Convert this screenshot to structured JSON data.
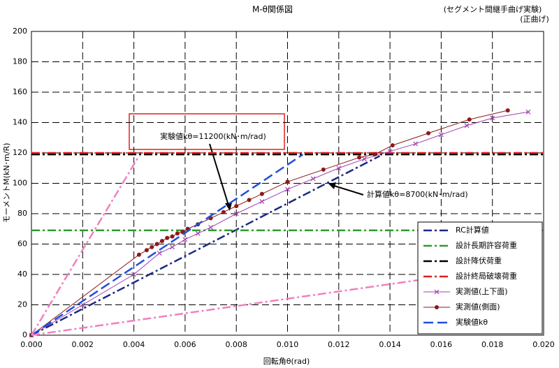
{
  "chart_data": {
    "type": "line",
    "title": "M-θ関係図",
    "subtitle": [
      "(セグメント間継手曲げ実験)",
      "(正曲げ)"
    ],
    "x_label": "回転角θ(rad)",
    "y_label": "モーメントM(kN･m/R)",
    "xlim": [
      0,
      0.02
    ],
    "ylim": [
      0,
      200
    ],
    "xticks": [
      {
        "value": 0,
        "label": "0.000"
      },
      {
        "value": 0.002,
        "label": "0.002"
      },
      {
        "value": 0.004,
        "label": "0.004"
      },
      {
        "value": 0.006,
        "label": "0.006"
      },
      {
        "value": 0.008,
        "label": "0.008"
      },
      {
        "value": 0.01,
        "label": "0.010"
      },
      {
        "value": 0.012,
        "label": "0.012"
      },
      {
        "value": 0.014,
        "label": "0.014"
      },
      {
        "value": 0.016,
        "label": "0.016"
      },
      {
        "value": 0.018,
        "label": "0.018"
      },
      {
        "value": 0.02,
        "label": "0.020"
      }
    ],
    "yticks": [
      0,
      20,
      40,
      60,
      80,
      100,
      120,
      140,
      160,
      180,
      200
    ],
    "grid": true,
    "legend": "lower right",
    "annotations": [
      {
        "text": "実験値kθ=11200(kN･m/rad)"
      },
      {
        "text": "計算値kθ=8700(kN･m/rad)"
      }
    ],
    "series": [
      {
        "name": "RC計算値",
        "color": "#1a2a80",
        "dash": "dashdot",
        "x": [
          0,
          0.0136
        ],
        "values": [
          0,
          118
        ]
      },
      {
        "name": "設計長期許容荷重",
        "color": "#2e9a2e",
        "dash": "dashdot",
        "x": [
          0,
          0.02
        ],
        "values": [
          69,
          69
        ]
      },
      {
        "name": "設計降伏荷重",
        "color": "#000000",
        "dash": "dashdot",
        "x": [
          0,
          0.02
        ],
        "values": [
          119,
          119
        ]
      },
      {
        "name": "設計終局破壊荷重",
        "color": "#e02020",
        "dash": "dashdot",
        "x": [
          0,
          0.02
        ],
        "values": [
          120,
          120
        ]
      },
      {
        "name": "実測値(上下面)",
        "color": "#a040b0",
        "dash": "solid",
        "marker": "x",
        "x": [
          0,
          0.002,
          0.004,
          0.005,
          0.0055,
          0.006,
          0.0065,
          0.007,
          0.008,
          0.009,
          0.01,
          0.011,
          0.012,
          0.013,
          0.014,
          0.015,
          0.016,
          0.017,
          0.018,
          0.0194
        ],
        "values": [
          0,
          20,
          40,
          54,
          58,
          63,
          67,
          71,
          80,
          88,
          96,
          103,
          110,
          116,
          121,
          126,
          132,
          138,
          143,
          147
        ]
      },
      {
        "name": "実測値(側面)",
        "color": "#8b1a1a",
        "dash": "solid",
        "marker": "circle",
        "x": [
          0,
          0.0042,
          0.0045,
          0.0047,
          0.0049,
          0.0051,
          0.0053,
          0.0055,
          0.0057,
          0.0059,
          0.0061,
          0.0065,
          0.007,
          0.0075,
          0.008,
          0.0085,
          0.009,
          0.01,
          0.0114,
          0.0128,
          0.0134,
          0.0141,
          0.0155,
          0.0171,
          0.0186
        ],
        "values": [
          0,
          53,
          56,
          58,
          60,
          62,
          64,
          65,
          67,
          68,
          70,
          73,
          77,
          81,
          85,
          89,
          93,
          101,
          109,
          117,
          119,
          125,
          133,
          142,
          148
        ]
      },
      {
        "name": "実験値kθ",
        "color": "#1f4fe0",
        "dash": "longdash",
        "x": [
          0,
          0.0106
        ],
        "values": [
          0,
          119
        ]
      },
      {
        "color": "#f080c0",
        "dash": "dashdot",
        "x": [
          0,
          0.0042
        ],
        "values": [
          0,
          118
        ]
      },
      {
        "color": "#f080c0",
        "dash": "dashdot",
        "x": [
          0,
          0.0175
        ],
        "values": [
          0,
          42
        ]
      }
    ]
  }
}
